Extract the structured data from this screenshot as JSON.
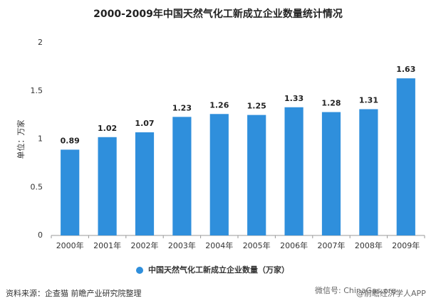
{
  "chart_data": {
    "type": "bar",
    "title": "2000-2009年中国天然气化工新成立企业数量统计情况",
    "y_label": "单位：万家",
    "categories": [
      "2000年",
      "2001年",
      "2002年",
      "2003年",
      "2004年",
      "2005年",
      "2006年",
      "2007年",
      "2008年",
      "2009年"
    ],
    "series": [
      {
        "name": "中国天然气化工新成立企业数量（万家）",
        "color": "#2f8fdc",
        "values": [
          0.89,
          1.02,
          1.07,
          1.23,
          1.26,
          1.25,
          1.33,
          1.28,
          1.31,
          1.63
        ]
      }
    ],
    "ylim": [
      0,
      2
    ],
    "yticks": [
      0,
      0.5,
      1,
      1.5,
      2
    ],
    "grid": false,
    "legend": "bottom",
    "source": "资料来源：企查猫 前瞻产业研究院整理",
    "watermark": [
      "微信号: ChinaGas.org",
      "@前瞻经济学人APP"
    ]
  }
}
